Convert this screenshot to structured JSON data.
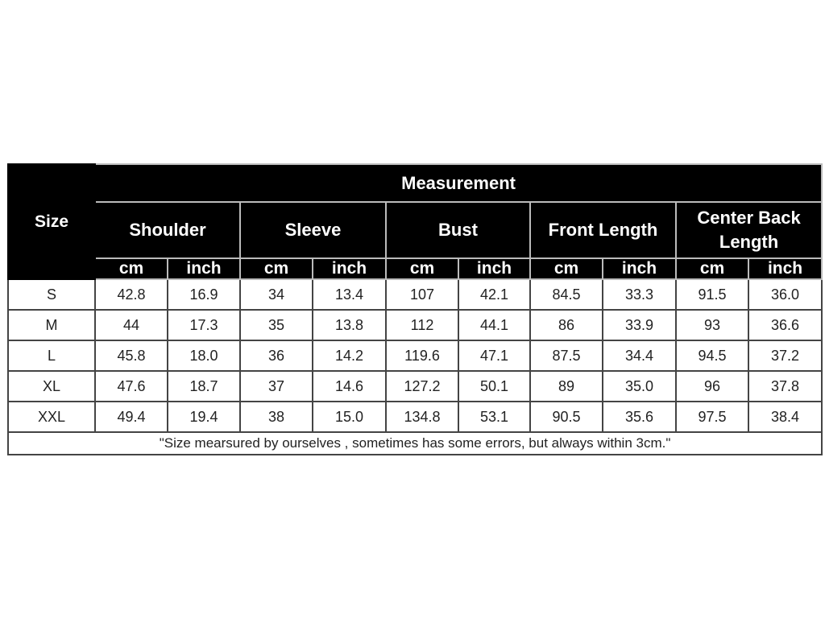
{
  "table": {
    "size_label": "Size",
    "measurement_label": "Measurement",
    "groups": [
      "Shoulder",
      "Sleeve",
      "Bust",
      "Front Length",
      "Center Back Length"
    ],
    "units": [
      "cm",
      "inch"
    ],
    "rows": [
      {
        "size": "S",
        "values": [
          "42.8",
          "16.9",
          "34",
          "13.4",
          "107",
          "42.1",
          "84.5",
          "33.3",
          "91.5",
          "36.0"
        ]
      },
      {
        "size": "M",
        "values": [
          "44",
          "17.3",
          "35",
          "13.8",
          "112",
          "44.1",
          "86",
          "33.9",
          "93",
          "36.6"
        ]
      },
      {
        "size": "L",
        "values": [
          "45.8",
          "18.0",
          "36",
          "14.2",
          "119.6",
          "47.1",
          "87.5",
          "34.4",
          "94.5",
          "37.2"
        ]
      },
      {
        "size": "XL",
        "values": [
          "47.6",
          "18.7",
          "37",
          "14.6",
          "127.2",
          "50.1",
          "89",
          "35.0",
          "96",
          "37.8"
        ]
      },
      {
        "size": "XXL",
        "values": [
          "49.4",
          "19.4",
          "38",
          "15.0",
          "134.8",
          "53.1",
          "90.5",
          "35.6",
          "97.5",
          "38.4"
        ]
      }
    ],
    "footnote": "\"Size mearsured by ourselves , sometimes has some errors, but always within 3cm.\""
  }
}
